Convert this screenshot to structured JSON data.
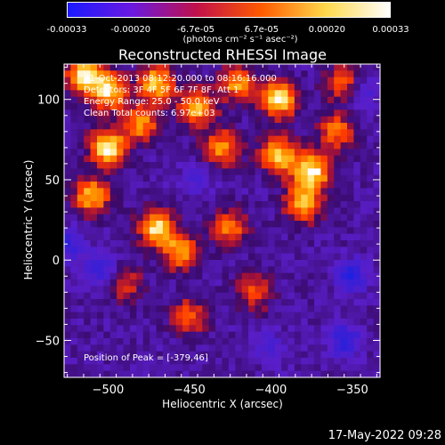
{
  "colorbar": {
    "ticks": [
      "-0.00033",
      "-0.00020",
      "-6.7e-05",
      "6.7e-05",
      "0.00020",
      "0.00033"
    ],
    "tick_values": [
      -0.00033,
      -0.0002,
      -6.7e-05,
      6.7e-05,
      0.0002,
      0.00033
    ],
    "range": [
      -0.00033,
      0.00033
    ],
    "unit": "(photons cm⁻² s⁻¹ asec⁻²)",
    "colors": [
      "#1a1aff",
      "#6a19e0",
      "#c0104a",
      "#ff5a00",
      "#ffd84a",
      "#ffffff"
    ]
  },
  "title": "Reconstructed RHESSI Image",
  "info_lines": [
    "21-Oct-2013 08:12:20.000 to 08:16:16.000",
    "Detectors: 3F 4F 5F 6F 7F 8F, Att 1",
    "Energy Range: 25.0 - 50.0 keV",
    "Clean     Total counts: 6.97e+03"
  ],
  "peak_text": "Position of Peak = [-379,46]",
  "stamp": "17-May-2022 09:28",
  "chart_data": {
    "type": "heatmap",
    "title": "Reconstructed RHESSI Image",
    "xlabel": "Heliocentric X (arcsec)",
    "ylabel": "Heliocentric Y (arcsec)",
    "xlim": [
      -527,
      -333
    ],
    "ylim": [
      -73,
      122
    ],
    "xticks": [
      -500,
      -450,
      -400,
      -350
    ],
    "xtick_labels": [
      "−500",
      "−450",
      "−400",
      "−350"
    ],
    "yticks": [
      -50,
      0,
      50,
      100
    ],
    "ytick_labels": [
      "−50",
      "0",
      "50",
      "100"
    ],
    "value_range": [
      -0.00033,
      0.00033
    ],
    "peak_position": [
      -379,
      46
    ],
    "hot_spots": [
      {
        "x": -500,
        "y": 70,
        "v": 1.0
      },
      {
        "x": -510,
        "y": 40,
        "v": 0.8
      },
      {
        "x": -500,
        "y": 105,
        "v": 0.9
      },
      {
        "x": -470,
        "y": 110,
        "v": 0.85
      },
      {
        "x": -480,
        "y": 85,
        "v": 0.7
      },
      {
        "x": -470,
        "y": 20,
        "v": 0.9
      },
      {
        "x": -455,
        "y": 5,
        "v": 0.75
      },
      {
        "x": -445,
        "y": 95,
        "v": 0.8
      },
      {
        "x": -430,
        "y": 70,
        "v": 0.7
      },
      {
        "x": -420,
        "y": 110,
        "v": 0.7
      },
      {
        "x": -395,
        "y": 100,
        "v": 0.95
      },
      {
        "x": -395,
        "y": 65,
        "v": 0.85
      },
      {
        "x": -375,
        "y": 55,
        "v": 1.0
      },
      {
        "x": -380,
        "y": 35,
        "v": 0.8
      },
      {
        "x": -360,
        "y": 80,
        "v": 0.6
      },
      {
        "x": -355,
        "y": 110,
        "v": 0.65
      },
      {
        "x": -425,
        "y": 20,
        "v": 0.6
      },
      {
        "x": -410,
        "y": -20,
        "v": 0.5
      },
      {
        "x": -450,
        "y": -35,
        "v": 0.55
      },
      {
        "x": -490,
        "y": -15,
        "v": 0.45
      },
      {
        "x": -515,
        "y": 115,
        "v": 0.9
      }
    ],
    "cold_spots": [
      {
        "x": -505,
        "y": -5,
        "v": 0.8
      },
      {
        "x": -350,
        "y": -10,
        "v": 0.9
      },
      {
        "x": -355,
        "y": -50,
        "v": 0.9
      },
      {
        "x": -345,
        "y": 105,
        "v": 0.8
      },
      {
        "x": -400,
        "y": -55,
        "v": 0.5
      },
      {
        "x": -445,
        "y": 50,
        "v": 0.5
      },
      {
        "x": -525,
        "y": 10,
        "v": 0.7
      }
    ]
  }
}
